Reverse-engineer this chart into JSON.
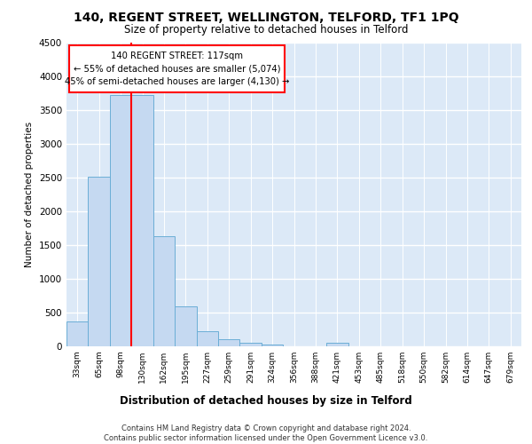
{
  "title_line1": "140, REGENT STREET, WELLINGTON, TELFORD, TF1 1PQ",
  "title_line2": "Size of property relative to detached houses in Telford",
  "xlabel": "Distribution of detached houses by size in Telford",
  "ylabel": "Number of detached properties",
  "footnote": "Contains HM Land Registry data © Crown copyright and database right 2024.\nContains public sector information licensed under the Open Government Licence v3.0.",
  "categories": [
    "33sqm",
    "65sqm",
    "98sqm",
    "130sqm",
    "162sqm",
    "195sqm",
    "227sqm",
    "259sqm",
    "291sqm",
    "324sqm",
    "356sqm",
    "388sqm",
    "421sqm",
    "453sqm",
    "485sqm",
    "518sqm",
    "550sqm",
    "582sqm",
    "614sqm",
    "647sqm",
    "679sqm"
  ],
  "values": [
    370,
    2510,
    3720,
    3720,
    1630,
    590,
    225,
    105,
    55,
    30,
    0,
    0,
    55,
    0,
    0,
    0,
    0,
    0,
    0,
    0,
    0
  ],
  "bar_color": "#c5d9f1",
  "bar_edge_color": "#6baed6",
  "highlight_color": "#ff0000",
  "ylim": [
    0,
    4500
  ],
  "yticks": [
    0,
    500,
    1000,
    1500,
    2000,
    2500,
    3000,
    3500,
    4000,
    4500
  ],
  "annotation_text": "140 REGENT STREET: 117sqm\n← 55% of detached houses are smaller (5,074)\n45% of semi-detached houses are larger (4,130) →",
  "vline_x_index": 2,
  "plot_bg_color": "#dce9f7"
}
